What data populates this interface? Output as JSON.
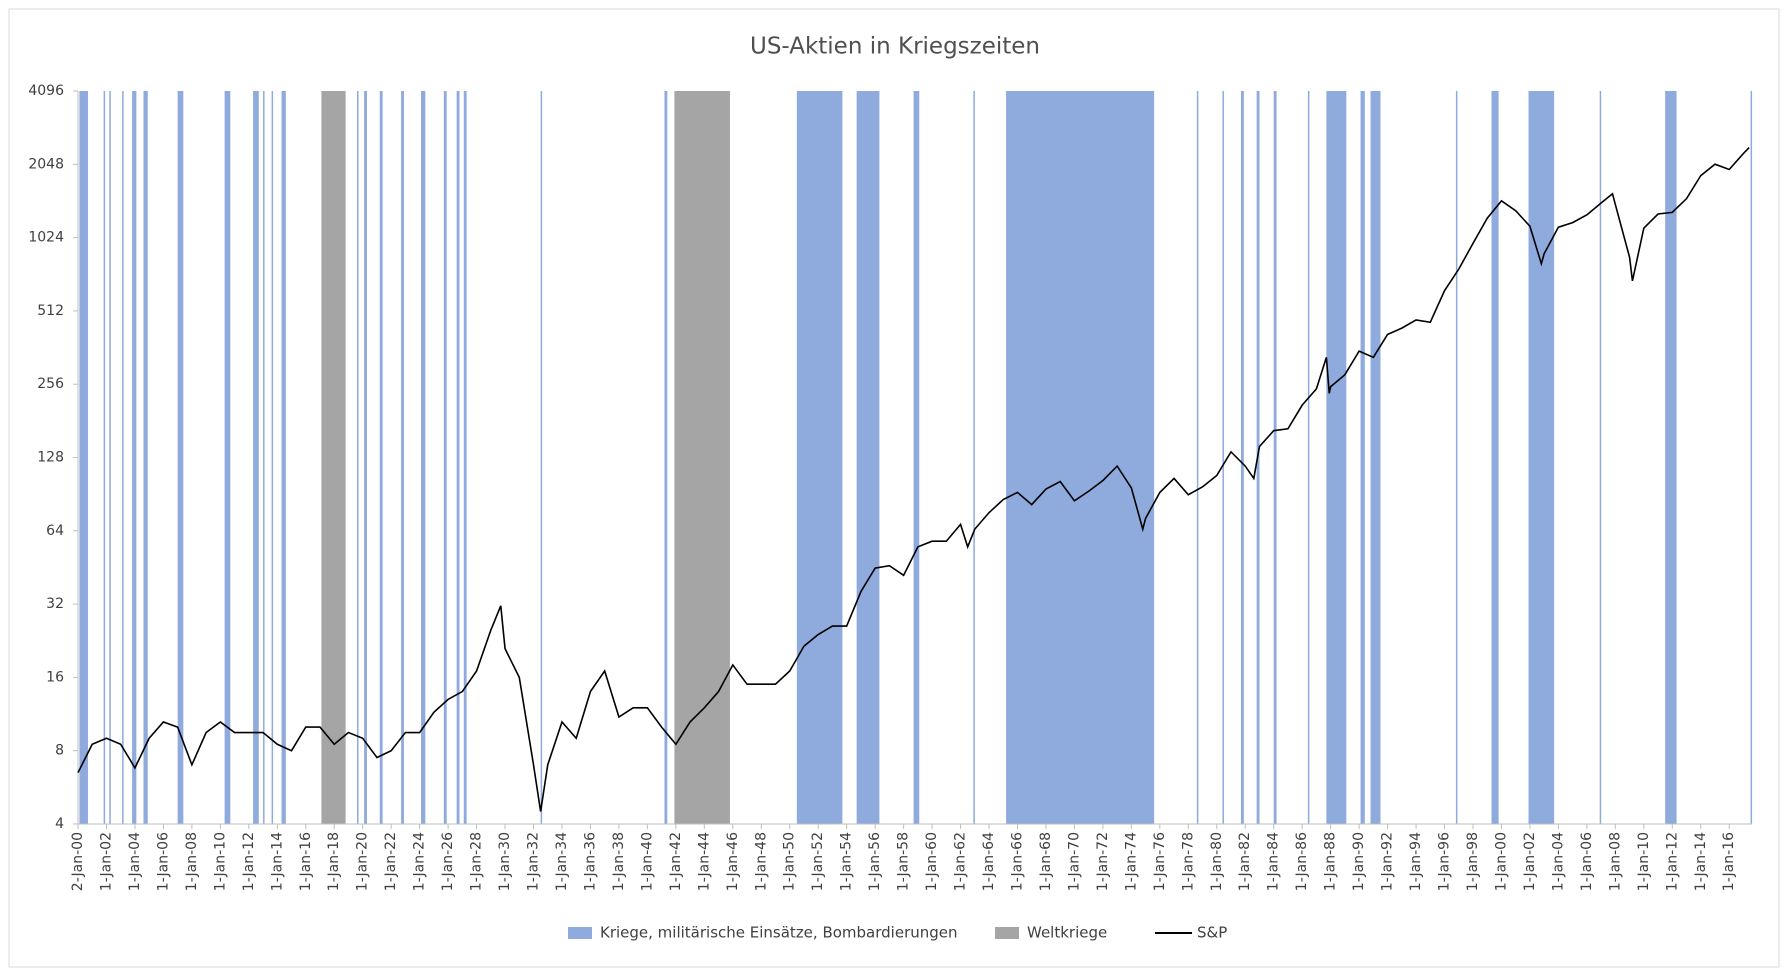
{
  "chart_data": {
    "type": "line",
    "title": "US-Aktien in Kriegszeiten",
    "log_scale_y": true,
    "log_base": 2,
    "xlim": [
      1900,
      2017.6
    ],
    "ylim": [
      4,
      4096
    ],
    "yticks": [
      4,
      8,
      16,
      32,
      64,
      128,
      256,
      512,
      1024,
      2048,
      4096
    ],
    "xticks": [
      {
        "value": 1900,
        "label": "2-Jan-00"
      },
      {
        "value": 1902,
        "label": "1-Jan-02"
      },
      {
        "value": 1904,
        "label": "1-Jan-04"
      },
      {
        "value": 1906,
        "label": "1-Jan-06"
      },
      {
        "value": 1908,
        "label": "1-Jan-08"
      },
      {
        "value": 1910,
        "label": "1-Jan-10"
      },
      {
        "value": 1912,
        "label": "1-Jan-12"
      },
      {
        "value": 1914,
        "label": "1-Jan-14"
      },
      {
        "value": 1916,
        "label": "1-Jan-16"
      },
      {
        "value": 1918,
        "label": "1-Jan-18"
      },
      {
        "value": 1920,
        "label": "1-Jan-20"
      },
      {
        "value": 1922,
        "label": "1-Jan-22"
      },
      {
        "value": 1924,
        "label": "1-Jan-24"
      },
      {
        "value": 1926,
        "label": "1-Jan-26"
      },
      {
        "value": 1928,
        "label": "1-Jan-28"
      },
      {
        "value": 1930,
        "label": "1-Jan-30"
      },
      {
        "value": 1932,
        "label": "1-Jan-32"
      },
      {
        "value": 1934,
        "label": "1-Jan-34"
      },
      {
        "value": 1936,
        "label": "1-Jan-36"
      },
      {
        "value": 1938,
        "label": "1-Jan-38"
      },
      {
        "value": 1940,
        "label": "1-Jan-40"
      },
      {
        "value": 1942,
        "label": "1-Jan-42"
      },
      {
        "value": 1944,
        "label": "1-Jan-44"
      },
      {
        "value": 1946,
        "label": "1-Jan-46"
      },
      {
        "value": 1948,
        "label": "1-Jan-48"
      },
      {
        "value": 1950,
        "label": "1-Jan-50"
      },
      {
        "value": 1952,
        "label": "1-Jan-52"
      },
      {
        "value": 1954,
        "label": "1-Jan-54"
      },
      {
        "value": 1956,
        "label": "1-Jan-56"
      },
      {
        "value": 1958,
        "label": "1-Jan-58"
      },
      {
        "value": 1960,
        "label": "1-Jan-60"
      },
      {
        "value": 1962,
        "label": "1-Jan-62"
      },
      {
        "value": 1964,
        "label": "1-Jan-64"
      },
      {
        "value": 1966,
        "label": "1-Jan-66"
      },
      {
        "value": 1968,
        "label": "1-Jan-68"
      },
      {
        "value": 1970,
        "label": "1-Jan-70"
      },
      {
        "value": 1972,
        "label": "1-Jan-72"
      },
      {
        "value": 1974,
        "label": "1-Jan-74"
      },
      {
        "value": 1976,
        "label": "1-Jan-76"
      },
      {
        "value": 1978,
        "label": "1-Jan-78"
      },
      {
        "value": 1980,
        "label": "1-Jan-80"
      },
      {
        "value": 1982,
        "label": "1-Jan-82"
      },
      {
        "value": 1984,
        "label": "1-Jan-84"
      },
      {
        "value": 1986,
        "label": "1-Jan-86"
      },
      {
        "value": 1988,
        "label": "1-Jan-88"
      },
      {
        "value": 1990,
        "label": "1-Jan-90"
      },
      {
        "value": 1992,
        "label": "1-Jan-92"
      },
      {
        "value": 1994,
        "label": "1-Jan-94"
      },
      {
        "value": 1996,
        "label": "1-Jan-96"
      },
      {
        "value": 1998,
        "label": "1-Jan-98"
      },
      {
        "value": 2000,
        "label": "1-Jan-00"
      },
      {
        "value": 2002,
        "label": "1-Jan-02"
      },
      {
        "value": 2004,
        "label": "1-Jan-04"
      },
      {
        "value": 2006,
        "label": "1-Jan-06"
      },
      {
        "value": 2008,
        "label": "1-Jan-08"
      },
      {
        "value": 2010,
        "label": "1-Jan-10"
      },
      {
        "value": 2012,
        "label": "1-Jan-12"
      },
      {
        "value": 2014,
        "label": "1-Jan-14"
      },
      {
        "value": 2016,
        "label": "1-Jan-16"
      }
    ],
    "series": [
      {
        "name": "Kriege, militärische Einsätze, Bombardierungen",
        "color": "#8faadc",
        "ranges": [
          [
            1900.1,
            1900.7
          ],
          [
            1901.8,
            1901.9
          ],
          [
            1902.2,
            1902.3
          ],
          [
            1903.1,
            1903.2
          ],
          [
            1903.8,
            1904.1
          ],
          [
            1904.6,
            1904.9
          ],
          [
            1907.0,
            1907.4
          ],
          [
            1910.3,
            1910.7
          ],
          [
            1912.3,
            1912.7
          ],
          [
            1913.0,
            1913.1
          ],
          [
            1913.6,
            1913.7
          ],
          [
            1914.3,
            1914.6
          ],
          [
            1919.6,
            1919.7
          ],
          [
            1920.1,
            1920.3
          ],
          [
            1921.2,
            1921.4
          ],
          [
            1922.7,
            1922.9
          ],
          [
            1924.1,
            1924.4
          ],
          [
            1925.7,
            1925.9
          ],
          [
            1926.6,
            1926.8
          ],
          [
            1927.1,
            1927.3
          ],
          [
            1932.5,
            1932.6
          ],
          [
            1941.2,
            1941.4
          ],
          [
            1950.5,
            1953.7
          ],
          [
            1954.7,
            1956.3
          ],
          [
            1958.7,
            1959.1
          ],
          [
            1962.9,
            1963.0
          ],
          [
            1965.2,
            1975.6
          ],
          [
            1978.6,
            1978.7
          ],
          [
            1980.4,
            1980.5
          ],
          [
            1981.7,
            1981.9
          ],
          [
            1982.8,
            1983.0
          ],
          [
            1984.0,
            1984.2
          ],
          [
            1986.4,
            1986.5
          ],
          [
            1987.7,
            1989.1
          ],
          [
            1990.1,
            1990.4
          ],
          [
            1990.8,
            1991.5
          ],
          [
            1996.8,
            1996.9
          ],
          [
            1999.3,
            1999.8
          ],
          [
            2001.9,
            2003.7
          ],
          [
            2006.9,
            2007.0
          ],
          [
            2011.5,
            2012.3
          ],
          [
            2017.5,
            2017.6
          ]
        ]
      },
      {
        "name": "Weltkriege",
        "color": "#a5a5a5",
        "ranges": [
          [
            1917.1,
            1918.8
          ],
          [
            1941.9,
            1945.8
          ]
        ]
      },
      {
        "name": "S&P",
        "color": "#000000",
        "x": [
          1900,
          1901,
          1902,
          1903,
          1904,
          1905,
          1906,
          1907,
          1908,
          1909,
          1910,
          1911,
          1912,
          1913,
          1914,
          1915,
          1916,
          1917,
          1918,
          1919,
          1920,
          1921,
          1922,
          1923,
          1924,
          1925,
          1926,
          1927,
          1928,
          1929,
          1929.7,
          1930,
          1931,
          1932,
          1932.5,
          1933,
          1934,
          1935,
          1936,
          1937,
          1938,
          1939,
          1940,
          1941,
          1942,
          1943,
          1944,
          1945,
          1946,
          1947,
          1948,
          1949,
          1950,
          1951,
          1952,
          1953,
          1954,
          1955,
          1956,
          1957,
          1958,
          1959,
          1960,
          1961,
          1962,
          1962.5,
          1963,
          1964,
          1965,
          1966,
          1967,
          1968,
          1969,
          1970,
          1971,
          1972,
          1973,
          1974,
          1974.8,
          1975,
          1976,
          1977,
          1978,
          1979,
          1980,
          1981,
          1982,
          1982.6,
          1983,
          1984,
          1985,
          1986,
          1987,
          1987.7,
          1987.9,
          1988,
          1989,
          1990,
          1991,
          1992,
          1993,
          1994,
          1995,
          1996,
          1997,
          1998,
          1999,
          2000,
          2001,
          2002,
          2002.8,
          2003,
          2004,
          2005,
          2006,
          2007,
          2007.8,
          2008,
          2009,
          2009.2,
          2010,
          2011,
          2012,
          2013,
          2014,
          2015,
          2016,
          2017,
          2017.4
        ],
        "values": [
          6.5,
          8.5,
          9,
          8.5,
          6.8,
          9,
          10.5,
          10,
          7,
          9.5,
          10.5,
          9.5,
          9.5,
          9.5,
          8.5,
          8,
          10,
          10,
          8.5,
          9.5,
          9,
          7.5,
          8,
          9.5,
          9.5,
          11.5,
          13,
          14,
          17,
          25,
          31.5,
          21,
          16,
          7,
          4.5,
          7,
          10.5,
          9,
          14,
          17,
          11,
          12,
          12,
          10,
          8.5,
          10.5,
          12,
          14,
          18,
          15,
          15,
          15,
          17,
          21.5,
          24,
          26,
          26,
          36,
          45,
          46,
          42,
          55,
          58,
          58,
          68,
          55,
          65,
          76,
          86,
          92,
          82,
          95,
          102,
          85,
          93,
          103,
          118,
          96,
          65,
          72,
          92,
          105,
          90,
          97,
          108,
          135,
          118,
          105,
          142,
          165,
          168,
          210,
          245,
          330,
          235,
          250,
          280,
          350,
          330,
          410,
          435,
          470,
          460,
          620,
          760,
          970,
          1230,
          1450,
          1320,
          1140,
          800,
          880,
          1130,
          1180,
          1270,
          1420,
          1550,
          1400,
          850,
          680,
          1120,
          1280,
          1300,
          1480,
          1840,
          2050,
          1950,
          2270,
          2400
        ]
      }
    ]
  }
}
